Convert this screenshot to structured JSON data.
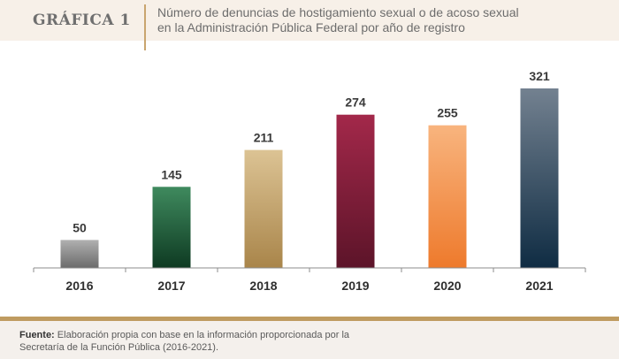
{
  "header": {
    "figure_label": "GRÁFICA 1",
    "title_line1": "Número de denuncias de hostigamiento sexual o de acoso sexual",
    "title_line2": "en la Administración Pública Federal por año de registro"
  },
  "chart_data": {
    "type": "bar",
    "categories": [
      "2016",
      "2017",
      "2018",
      "2019",
      "2020",
      "2021"
    ],
    "values": [
      50,
      145,
      211,
      274,
      255,
      321
    ],
    "ylim": [
      0,
      321
    ],
    "grid": false,
    "data_labels": true,
    "bar_gradients": [
      [
        "#b0b0b0",
        "#6b6b6b"
      ],
      [
        "#3f8a5e",
        "#0e3a22"
      ],
      [
        "#dcc394",
        "#a9854a"
      ],
      [
        "#a3284a",
        "#5c1429"
      ],
      [
        "#f8b47e",
        "#ee7a2c"
      ],
      [
        "#738190",
        "#0f2c43"
      ]
    ]
  },
  "footer": {
    "source_label": "Fuente:",
    "source_line1": "Elaboración propia con base en la información proporcionada por la",
    "source_line2": "Secretaría de la Función Pública (2016-2021)."
  },
  "colors": {
    "header_bg": "#f7f0e8",
    "accent_gold": "#bf9b60",
    "footer_bg": "#f4f0ec"
  }
}
